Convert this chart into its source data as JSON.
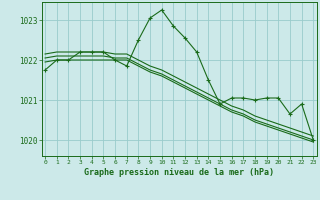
{
  "xlabel": "Graphe pression niveau de la mer (hPa)",
  "bg_color": "#cce9e9",
  "grid_color": "#99cccc",
  "line_color": "#1a6b1a",
  "ylim": [
    1019.6,
    1023.45
  ],
  "xlim": [
    -0.3,
    23.3
  ],
  "yticks": [
    1020,
    1021,
    1022,
    1023
  ],
  "xticks": [
    0,
    1,
    2,
    3,
    4,
    5,
    6,
    7,
    8,
    9,
    10,
    11,
    12,
    13,
    14,
    15,
    16,
    17,
    18,
    19,
    20,
    21,
    22,
    23
  ],
  "line1": [
    1021.75,
    1022.0,
    1022.0,
    1022.2,
    1022.2,
    1022.2,
    1022.0,
    1021.85,
    1022.5,
    1023.05,
    1023.25,
    1022.85,
    1022.55,
    1022.2,
    1021.5,
    1020.9,
    1021.05,
    1021.05,
    1021.0,
    1021.05,
    1021.05,
    1020.65,
    1020.9,
    1020.0
  ],
  "line2": [
    1021.95,
    1022.0,
    1022.0,
    1022.0,
    1022.0,
    1022.0,
    1022.0,
    1022.0,
    1021.85,
    1021.7,
    1021.6,
    1021.45,
    1021.3,
    1021.15,
    1021.0,
    1020.85,
    1020.7,
    1020.6,
    1020.45,
    1020.35,
    1020.25,
    1020.15,
    1020.05,
    1019.95
  ],
  "line3": [
    1022.05,
    1022.1,
    1022.1,
    1022.1,
    1022.1,
    1022.1,
    1022.05,
    1022.05,
    1021.9,
    1021.75,
    1021.65,
    1021.5,
    1021.35,
    1021.2,
    1021.05,
    1020.9,
    1020.75,
    1020.65,
    1020.5,
    1020.4,
    1020.3,
    1020.2,
    1020.1,
    1020.0
  ],
  "line4": [
    1022.15,
    1022.2,
    1022.2,
    1022.2,
    1022.2,
    1022.2,
    1022.15,
    1022.15,
    1022.0,
    1021.85,
    1021.75,
    1021.6,
    1021.45,
    1021.3,
    1021.15,
    1021.0,
    1020.85,
    1020.75,
    1020.6,
    1020.5,
    1020.4,
    1020.3,
    1020.2,
    1020.1
  ]
}
